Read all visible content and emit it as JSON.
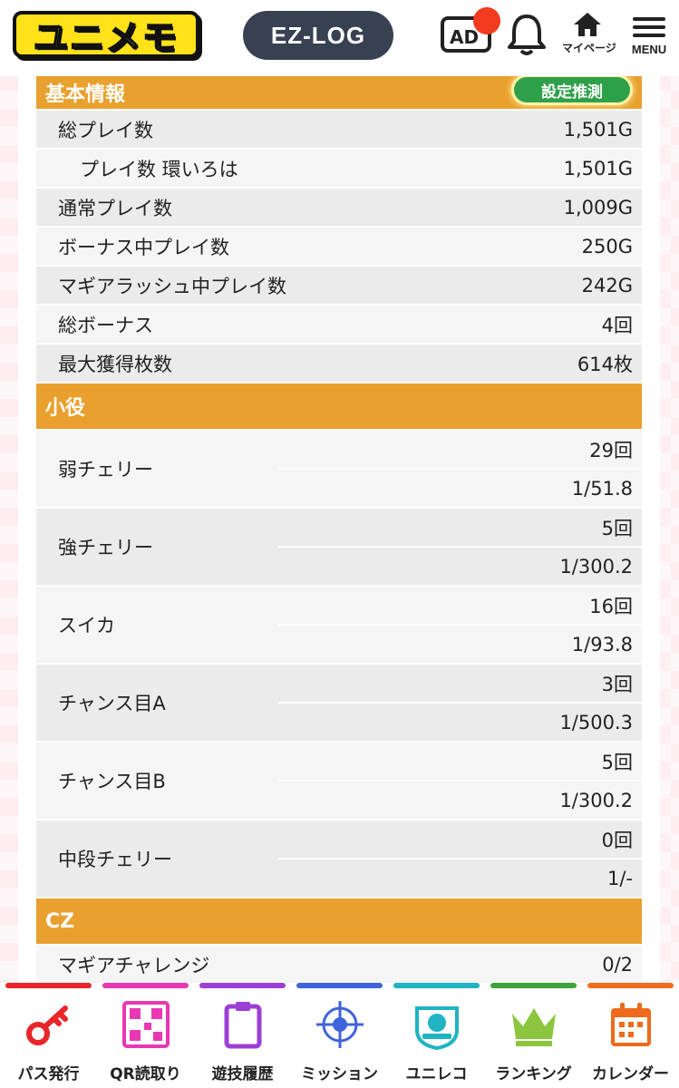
{
  "header": {
    "logo_text": "ユニメモ",
    "ezlog_label": "EZ-LOG",
    "ad_label": "AD",
    "mypage_label": "マイページ",
    "menu_label": "MENU"
  },
  "sections": {
    "basic": {
      "title": "基本情報",
      "guess_button": "設定推測",
      "rows": [
        {
          "label": "総プレイ数",
          "value": "1,501G"
        },
        {
          "label": "プレイ数 環いろは",
          "value": "1,501G"
        },
        {
          "label": "通常プレイ数",
          "value": "1,009G"
        },
        {
          "label": "ボーナス中プレイ数",
          "value": "250G"
        },
        {
          "label": "マギアラッシュ中プレイ数",
          "value": "242G"
        },
        {
          "label": "総ボーナス",
          "value": "4回"
        },
        {
          "label": "最大獲得枚数",
          "value": "614枚"
        }
      ]
    },
    "koyaku": {
      "title": "小役",
      "rows": [
        {
          "label": "弱チェリー",
          "count": "29回",
          "prob": "1/51.8"
        },
        {
          "label": "強チェリー",
          "count": "5回",
          "prob": "1/300.2"
        },
        {
          "label": "スイカ",
          "count": "16回",
          "prob": "1/93.8"
        },
        {
          "label": "チャンス目A",
          "count": "3回",
          "prob": "1/500.3"
        },
        {
          "label": "チャンス目B",
          "count": "5回",
          "prob": "1/300.2"
        },
        {
          "label": "中段チェリー",
          "count": "0回",
          "prob": "1/-"
        }
      ]
    },
    "cz": {
      "title": "CZ",
      "rows": [
        {
          "label": "マギアチャレンジ",
          "value": "0/2"
        }
      ]
    }
  },
  "bottom_nav": [
    {
      "label": "パス発行",
      "icon": "key-icon",
      "color": "#e8262a"
    },
    {
      "label": "QR読取り",
      "icon": "qr-code-icon",
      "color": "#e838b4"
    },
    {
      "label": "遊技履歴",
      "icon": "clipboard-icon",
      "color": "#9b3fd6"
    },
    {
      "label": "ミッション",
      "icon": "target-icon",
      "color": "#3f63dc"
    },
    {
      "label": "ユニレコ",
      "icon": "unireco-icon",
      "color": "#1fb3c4"
    },
    {
      "label": "ランキング",
      "icon": "crown-icon",
      "color": "#3fa43c"
    },
    {
      "label": "カレンダー",
      "icon": "calendar-icon",
      "color": "#ee6a1c"
    }
  ]
}
